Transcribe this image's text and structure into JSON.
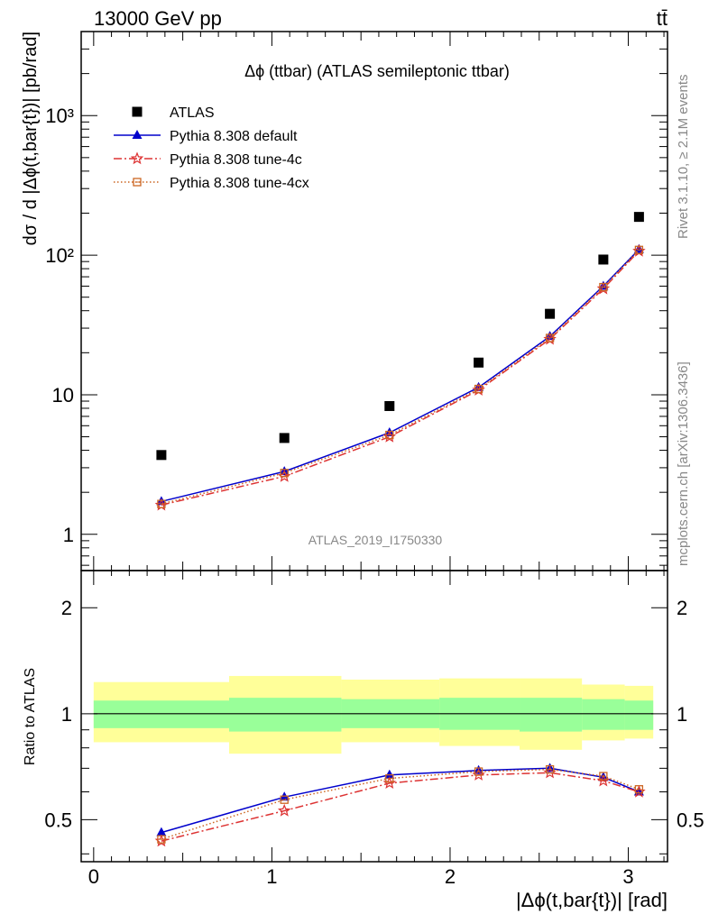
{
  "header": {
    "left": "13000 GeV pp",
    "right": "tt̄"
  },
  "side_labels": {
    "rivet": "Rivet 3.1.10, ≥ 2.1M events",
    "mcplots": "mcplots.cern.ch [arXiv:1306.3436]"
  },
  "chart_data": [
    {
      "type": "line",
      "panel": "main",
      "title": "Δϕ (ttbar) (ATLAS semileptonic ttbar)",
      "ylabel": "dσ / d |Δϕ(t,bar{t})| [pb/rad]",
      "xlim": [
        -0.07,
        3.22
      ],
      "ylim": [
        0.55,
        4000
      ],
      "y_scale": "log",
      "y_ticks": [
        {
          "value": 1,
          "label": "1"
        },
        {
          "value": 10,
          "label": "10"
        },
        {
          "value": 100,
          "label": "10²"
        },
        {
          "value": 1000,
          "label": "10³"
        }
      ],
      "watermark": "ATLAS_2019_I1750330",
      "legend_position": "top-left",
      "x": [
        0.38,
        1.07,
        1.66,
        2.16,
        2.56,
        2.86,
        3.06
      ],
      "series": [
        {
          "name": "ATLAS",
          "style": "data",
          "color": "#000000",
          "marker": "square",
          "values": [
            3.7,
            4.9,
            8.3,
            17.0,
            38.0,
            93.0,
            188.0
          ]
        },
        {
          "name": "Pythia 8.308 default",
          "style": "solid",
          "color": "#0000cc",
          "marker": "triangle",
          "values": [
            1.72,
            2.82,
            5.35,
            11.3,
            26.2,
            60.0,
            110.0
          ]
        },
        {
          "name": "Pythia 8.308 tune-4c",
          "style": "dashdot",
          "color": "#dd3333",
          "marker": "star",
          "values": [
            1.62,
            2.6,
            5.0,
            10.8,
            25.0,
            57.5,
            107.0
          ]
        },
        {
          "name": "Pythia 8.308 tune-4cx",
          "style": "dotted",
          "color": "#cc6622",
          "marker": "open-square",
          "values": [
            1.65,
            2.75,
            5.15,
            11.0,
            25.5,
            59.0,
            109.0
          ]
        }
      ]
    },
    {
      "type": "line",
      "panel": "ratio",
      "ylabel": "Ratio to ATLAS",
      "xlabel": "|Δϕ(t,bar{t})| [rad]",
      "xlim": [
        -0.07,
        3.22
      ],
      "ylim": [
        0.38,
        2.55
      ],
      "y_scale": "log",
      "y_ticks": [
        {
          "value": 0.5,
          "label": "0.5"
        },
        {
          "value": 1,
          "label": "1"
        },
        {
          "value": 2,
          "label": "2"
        }
      ],
      "x_ticks": [
        {
          "value": 0,
          "label": "0"
        },
        {
          "value": 1,
          "label": "1"
        },
        {
          "value": 2,
          "label": "2"
        },
        {
          "value": 3,
          "label": "3"
        }
      ],
      "bands": [
        {
          "x0": 0.0,
          "x1": 0.76,
          "inner": [
            0.91,
            1.09
          ],
          "outer": [
            0.83,
            1.23
          ]
        },
        {
          "x0": 0.76,
          "x1": 1.39,
          "inner": [
            0.89,
            1.11
          ],
          "outer": [
            0.77,
            1.28
          ]
        },
        {
          "x0": 1.39,
          "x1": 1.94,
          "inner": [
            0.91,
            1.1
          ],
          "outer": [
            0.83,
            1.25
          ]
        },
        {
          "x0": 1.94,
          "x1": 2.39,
          "inner": [
            0.9,
            1.11
          ],
          "outer": [
            0.81,
            1.26
          ]
        },
        {
          "x0": 2.39,
          "x1": 2.74,
          "inner": [
            0.89,
            1.11
          ],
          "outer": [
            0.79,
            1.26
          ]
        },
        {
          "x0": 2.74,
          "x1": 2.98,
          "inner": [
            0.9,
            1.1
          ],
          "outer": [
            0.84,
            1.21
          ]
        },
        {
          "x0": 2.98,
          "x1": 3.14,
          "inner": [
            0.9,
            1.09
          ],
          "outer": [
            0.85,
            1.2
          ]
        }
      ],
      "band_colors": {
        "inner": "#99ff99",
        "outer": "#ffff99"
      },
      "x": [
        0.38,
        1.07,
        1.66,
        2.16,
        2.56,
        2.86,
        3.06
      ],
      "series": [
        {
          "name": "Pythia 8.308 default",
          "style": "solid",
          "color": "#0000cc",
          "marker": "triangle",
          "values": [
            0.46,
            0.58,
            0.67,
            0.69,
            0.7,
            0.66,
            0.6
          ]
        },
        {
          "name": "Pythia 8.308 tune-4c",
          "style": "dashdot",
          "color": "#dd3333",
          "marker": "star",
          "values": [
            0.435,
            0.53,
            0.635,
            0.67,
            0.68,
            0.645,
            0.6
          ]
        },
        {
          "name": "Pythia 8.308 tune-4cx",
          "style": "dotted",
          "color": "#cc6622",
          "marker": "open-square",
          "values": [
            0.44,
            0.57,
            0.655,
            0.685,
            0.695,
            0.665,
            0.61
          ]
        }
      ]
    }
  ]
}
